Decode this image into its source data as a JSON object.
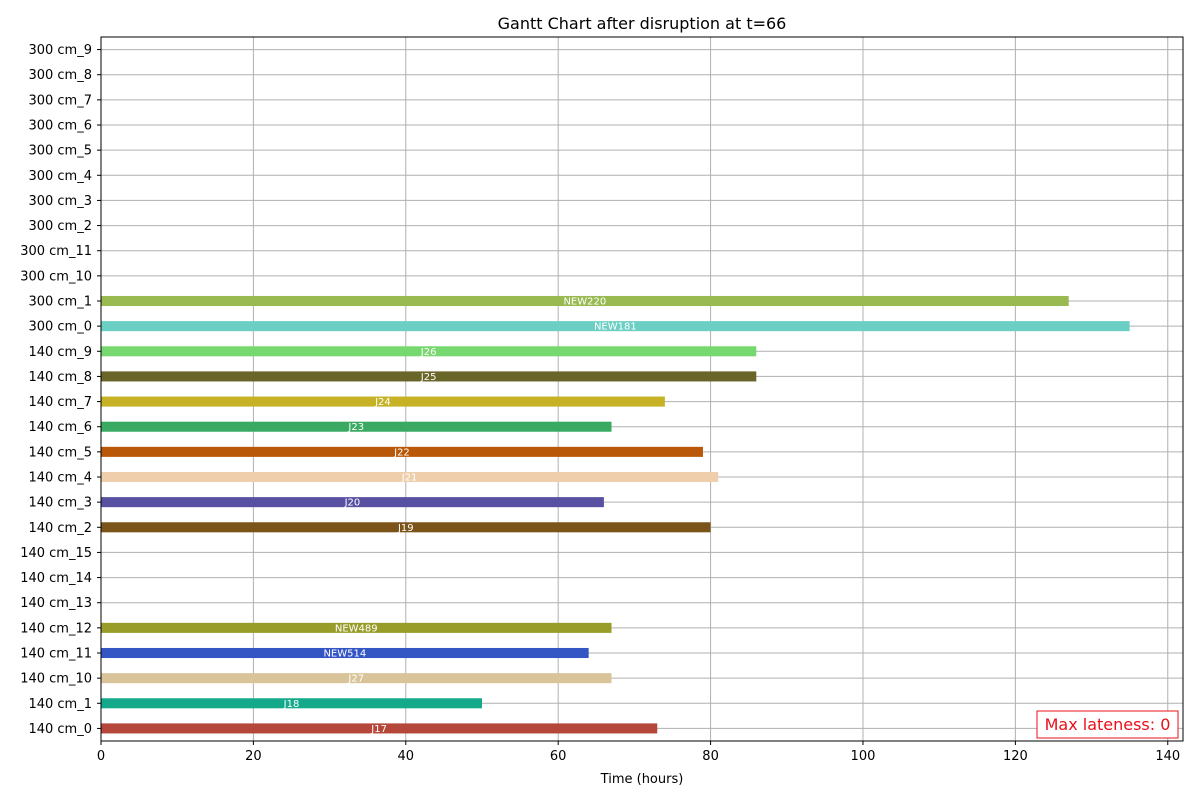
{
  "chart_data": {
    "type": "gantt",
    "title": "Gantt Chart after disruption at t=66",
    "xlabel": "Time (hours)",
    "ylabel": "",
    "xlim": [
      0,
      142
    ],
    "xticks": [
      0,
      20,
      40,
      60,
      80,
      100,
      120,
      140
    ],
    "grid": true,
    "rows": [
      {
        "label": "140 cm_0",
        "task": "J17",
        "start": 0,
        "end": 73,
        "color": "#b5473a"
      },
      {
        "label": "140 cm_1",
        "task": "J18",
        "start": 0,
        "end": 50,
        "color": "#14a98b"
      },
      {
        "label": "140 cm_10",
        "task": "J27",
        "start": 0,
        "end": 67,
        "color": "#d9c49a"
      },
      {
        "label": "140 cm_11",
        "task": "NEW514",
        "start": 0,
        "end": 64,
        "color": "#3455c4"
      },
      {
        "label": "140 cm_12",
        "task": "NEW489",
        "start": 0,
        "end": 67,
        "color": "#989d2a"
      },
      {
        "label": "140 cm_13",
        "task": "",
        "start": null,
        "end": null,
        "color": ""
      },
      {
        "label": "140 cm_14",
        "task": "",
        "start": null,
        "end": null,
        "color": ""
      },
      {
        "label": "140 cm_15",
        "task": "",
        "start": null,
        "end": null,
        "color": ""
      },
      {
        "label": "140 cm_2",
        "task": "J19",
        "start": 0,
        "end": 80,
        "color": "#7a5418"
      },
      {
        "label": "140 cm_3",
        "task": "J20",
        "start": 0,
        "end": 66,
        "color": "#5850a0"
      },
      {
        "label": "140 cm_4",
        "task": "J21",
        "start": 0,
        "end": 81,
        "color": "#efcfab"
      },
      {
        "label": "140 cm_5",
        "task": "J22",
        "start": 0,
        "end": 79,
        "color": "#b95808"
      },
      {
        "label": "140 cm_6",
        "task": "J23",
        "start": 0,
        "end": 67,
        "color": "#3aaa63"
      },
      {
        "label": "140 cm_7",
        "task": "J24",
        "start": 0,
        "end": 74,
        "color": "#c6b224"
      },
      {
        "label": "140 cm_8",
        "task": "J25",
        "start": 0,
        "end": 86,
        "color": "#6a6528"
      },
      {
        "label": "140 cm_9",
        "task": "J26",
        "start": 0,
        "end": 86,
        "color": "#78d870"
      },
      {
        "label": "300 cm_0",
        "task": "NEW181",
        "start": 0,
        "end": 135,
        "color": "#6ccfc4"
      },
      {
        "label": "300 cm_1",
        "task": "NEW220",
        "start": 0,
        "end": 127,
        "color": "#98ba50"
      },
      {
        "label": "300 cm_10",
        "task": "",
        "start": null,
        "end": null,
        "color": ""
      },
      {
        "label": "300 cm_11",
        "task": "",
        "start": null,
        "end": null,
        "color": ""
      },
      {
        "label": "300 cm_2",
        "task": "",
        "start": null,
        "end": null,
        "color": ""
      },
      {
        "label": "300 cm_3",
        "task": "",
        "start": null,
        "end": null,
        "color": ""
      },
      {
        "label": "300 cm_4",
        "task": "",
        "start": null,
        "end": null,
        "color": ""
      },
      {
        "label": "300 cm_5",
        "task": "",
        "start": null,
        "end": null,
        "color": ""
      },
      {
        "label": "300 cm_6",
        "task": "",
        "start": null,
        "end": null,
        "color": ""
      },
      {
        "label": "300 cm_7",
        "task": "",
        "start": null,
        "end": null,
        "color": ""
      },
      {
        "label": "300 cm_8",
        "task": "",
        "start": null,
        "end": null,
        "color": ""
      },
      {
        "label": "300 cm_9",
        "task": "",
        "start": null,
        "end": null,
        "color": ""
      }
    ],
    "annotation": {
      "text": "Max lateness: 0",
      "color": "#e8101a",
      "placement": "bottom-right"
    }
  }
}
